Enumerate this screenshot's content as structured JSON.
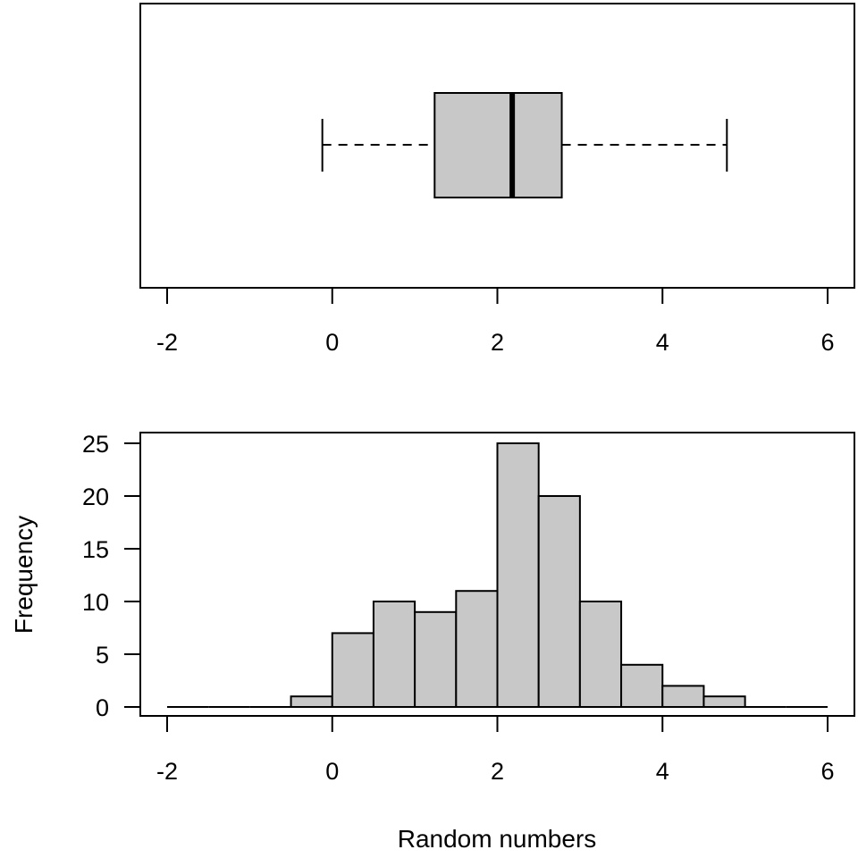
{
  "colors": {
    "fill": "#c8c8c8",
    "stroke": "#000000",
    "background": "#ffffff"
  },
  "chart_data": [
    {
      "type": "boxplot",
      "orientation": "horizontal",
      "xlim": [
        -2,
        6
      ],
      "x_ticks": [
        -2,
        0,
        2,
        4,
        6
      ],
      "x_tick_labels": [
        "-2",
        "0",
        "2",
        "4",
        "6"
      ],
      "stats": {
        "min": -0.12,
        "q1": 1.24,
        "median": 2.18,
        "q3": 2.78,
        "max": 4.78
      },
      "grid": false
    },
    {
      "type": "bar",
      "subtype": "histogram",
      "xlim": [
        -2,
        6
      ],
      "ylim": [
        0,
        25
      ],
      "x_ticks": [
        -2,
        0,
        2,
        4,
        6
      ],
      "x_tick_labels": [
        "-2",
        "0",
        "2",
        "4",
        "6"
      ],
      "y_ticks": [
        0,
        5,
        10,
        15,
        20,
        25
      ],
      "y_tick_labels": [
        "0",
        "5",
        "10",
        "15",
        "20",
        "25"
      ],
      "bin_edges": [
        -2,
        -1.5,
        -1,
        -0.5,
        0,
        0.5,
        1,
        1.5,
        2,
        2.5,
        3,
        3.5,
        4,
        4.5,
        5,
        5.5,
        6
      ],
      "values": [
        0,
        0,
        0,
        1,
        7,
        10,
        9,
        11,
        25,
        20,
        10,
        4,
        2,
        1,
        0,
        0
      ],
      "xlabel": "Random numbers",
      "ylabel": "Frequency",
      "grid": false
    }
  ]
}
